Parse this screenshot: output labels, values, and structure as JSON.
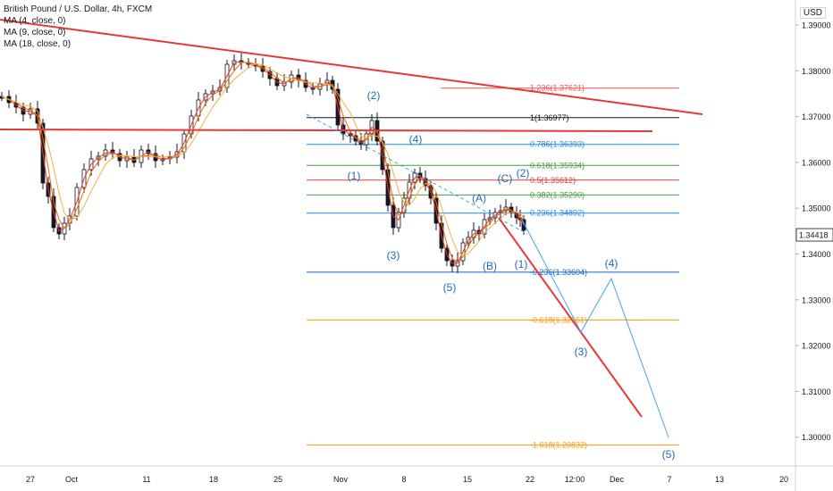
{
  "chart_data": {
    "type": "candlestick",
    "title": "British Pound / U.S. Dollar, 4h, FXCM",
    "currency": "USD",
    "indicators": [
      "MA (4, close, 0)",
      "MA (9, close, 0)",
      "MA (18, close, 0)"
    ],
    "ma_colors": {
      "MA (4, close, 0)": "#e53935",
      "MA (9, close, 0)": "#ef6c00",
      "MA (18, close, 0)": "#f5b041"
    },
    "ylim": [
      1.2925,
      1.3925
    ],
    "y_ticks": [
      {
        "value": 1.39,
        "label": "1.39000"
      },
      {
        "value": 1.38,
        "label": "1.38000"
      },
      {
        "value": 1.37,
        "label": "1.37000"
      },
      {
        "value": 1.36,
        "label": "1.36000"
      },
      {
        "value": 1.35,
        "label": "1.35000"
      },
      {
        "value": 1.34,
        "label": "1.34000"
      },
      {
        "value": 1.33,
        "label": "1.33000"
      },
      {
        "value": 1.32,
        "label": "1.32000"
      },
      {
        "value": 1.31,
        "label": "1.31000"
      },
      {
        "value": 1.3,
        "label": "1.30000"
      }
    ],
    "last_price": {
      "value": 1.34418,
      "label": "1.34418"
    },
    "x_ticks": [
      "27",
      "Oct",
      "11",
      "18",
      "25",
      "Nov",
      "8",
      "15",
      "22",
      "12:00",
      "Dec",
      "7",
      "13",
      "20"
    ],
    "fib_levels": [
      {
        "label": "1.236(1.37621)",
        "value": 1.37621,
        "color": "#ef5350"
      },
      {
        "label": "1(1.36977)",
        "value": 1.36977,
        "color": "#131722"
      },
      {
        "label": "0.786(1.36393)",
        "value": 1.36393,
        "color": "#1e88e5"
      },
      {
        "label": "0.618(1.35934)",
        "value": 1.35934,
        "color": "#43a047"
      },
      {
        "label": "0.5(1.35612)",
        "value": 1.35612,
        "color": "#e53935"
      },
      {
        "label": "0.382(1.35290)",
        "value": 1.3529,
        "color": "#43a047"
      },
      {
        "label": "0.236(1.34892)",
        "value": 1.34892,
        "color": "#1e88e5"
      },
      {
        "label": "-0.236(1.33604)",
        "value": 1.33604,
        "color": "#1565c0"
      },
      {
        "label": "-0.618(1.32561)",
        "value": 1.32561,
        "color": "#ff9800"
      },
      {
        "label": "-1.618(1.29832)",
        "value": 1.29832,
        "color": "#ff9800"
      }
    ],
    "wave_labels": [
      "(2)",
      "(4)",
      "(1)",
      "(3)",
      "(5)",
      "(A)",
      "(B)",
      "(C)",
      "(2)",
      "(1)",
      "(4)",
      "(3)",
      "(5)"
    ],
    "colors": {
      "up": "#26a69a",
      "candle": "#131722",
      "trendline": "#e53935",
      "projection": "#42a5f5",
      "wave_text": "#1e6bb8"
    }
  }
}
